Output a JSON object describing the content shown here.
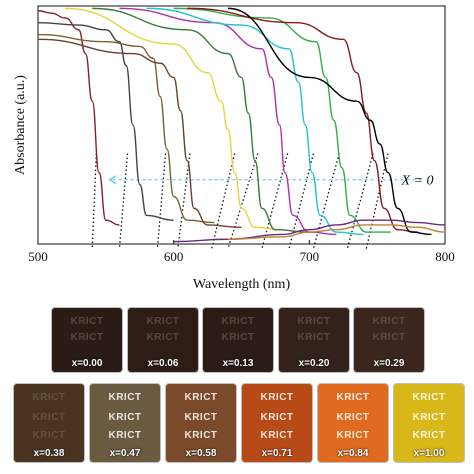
{
  "chart_data": {
    "type": "line",
    "title": "",
    "xlabel": "Wavelength (nm)",
    "ylabel": "Absorbance (a.u.)",
    "xlim": [
      500,
      800
    ],
    "ylim": [
      0,
      1
    ],
    "xticks": [
      "500",
      "600",
      "700",
      "800"
    ],
    "grid": false,
    "annotation": "X = 0",
    "series": [
      {
        "color": "#8a1f28",
        "x": [
          500,
          510,
          520,
          530,
          535,
          540,
          545,
          550,
          560
        ],
        "y": [
          0.98,
          0.97,
          0.95,
          0.9,
          0.8,
          0.6,
          0.3,
          0.1,
          0.08
        ]
      },
      {
        "color": "#444444",
        "x": [
          500,
          530,
          550,
          560,
          565,
          570,
          575,
          580,
          600
        ],
        "y": [
          0.93,
          0.92,
          0.9,
          0.85,
          0.75,
          0.5,
          0.25,
          0.12,
          0.1
        ]
      },
      {
        "color": "#7a6030",
        "x": [
          500,
          550,
          575,
          585,
          590,
          595,
          600,
          610,
          630
        ],
        "y": [
          0.88,
          0.85,
          0.83,
          0.78,
          0.62,
          0.4,
          0.2,
          0.1,
          0.09
        ]
      },
      {
        "color": "#6b3f30",
        "x": [
          500,
          570,
          590,
          600,
          605,
          610,
          615,
          625,
          650
        ],
        "y": [
          0.86,
          0.8,
          0.76,
          0.7,
          0.56,
          0.35,
          0.15,
          0.08,
          0.07
        ]
      },
      {
        "color": "#e0d640",
        "x": [
          520,
          600,
          625,
          635,
          640,
          645,
          650,
          660,
          680
        ],
        "y": [
          0.99,
          0.84,
          0.72,
          0.6,
          0.48,
          0.3,
          0.15,
          0.07,
          0.06
        ]
      },
      {
        "color": "#3a7a3a",
        "x": [
          540,
          610,
          640,
          650,
          655,
          660,
          665,
          675,
          700
        ],
        "y": [
          0.99,
          0.9,
          0.8,
          0.7,
          0.55,
          0.35,
          0.15,
          0.06,
          0.05
        ]
      },
      {
        "color": "#b030b0",
        "x": [
          560,
          630,
          665,
          672,
          678,
          682,
          688,
          700,
          720
        ],
        "y": [
          0.99,
          0.93,
          0.82,
          0.7,
          0.5,
          0.3,
          0.12,
          0.05,
          0.04
        ]
      },
      {
        "color": "#20c4d0",
        "x": [
          580,
          650,
          685,
          692,
          697,
          702,
          708,
          720,
          740
        ],
        "y": [
          0.99,
          0.92,
          0.82,
          0.68,
          0.5,
          0.3,
          0.12,
          0.05,
          0.04
        ]
      },
      {
        "color": "#30b040",
        "x": [
          600,
          670,
          705,
          712,
          718,
          724,
          730,
          742,
          760
        ],
        "y": [
          0.99,
          0.95,
          0.85,
          0.7,
          0.52,
          0.32,
          0.12,
          0.05,
          0.05
        ]
      },
      {
        "color": "#8a1a1a",
        "x": [
          610,
          690,
          725,
          735,
          742,
          748,
          755,
          765,
          780
        ],
        "y": [
          0.99,
          0.93,
          0.86,
          0.72,
          0.55,
          0.35,
          0.15,
          0.06,
          0.05
        ]
      },
      {
        "color": "#000000",
        "x": [
          640,
          700,
          735,
          745,
          752,
          758,
          765,
          775,
          790
        ],
        "y": [
          0.99,
          0.7,
          0.6,
          0.52,
          0.42,
          0.3,
          0.15,
          0.05,
          0.04
        ]
      },
      {
        "color": "#6a2a80",
        "x": [
          600,
          640,
          680,
          700,
          720,
          740,
          760,
          780,
          800
        ],
        "y": [
          0.01,
          0.02,
          0.04,
          0.06,
          0.08,
          0.1,
          0.1,
          0.09,
          0.08
        ]
      },
      {
        "color": "#c08030",
        "x": [
          640,
          680,
          700,
          720,
          740,
          760,
          780,
          800
        ],
        "y": [
          0.02,
          0.03,
          0.05,
          0.06,
          0.08,
          0.08,
          0.07,
          0.05
        ]
      }
    ],
    "dotted_lines": [
      {
        "x1": 543,
        "x2": 540
      },
      {
        "x1": 566,
        "x2": 560
      },
      {
        "x1": 594,
        "x2": 588
      },
      {
        "x1": 612,
        "x2": 603
      },
      {
        "x1": 645,
        "x2": 628
      },
      {
        "x1": 662,
        "x2": 640
      },
      {
        "x1": 684,
        "x2": 665
      },
      {
        "x1": 703,
        "x2": 685
      },
      {
        "x1": 722,
        "x2": 703
      },
      {
        "x1": 747,
        "x2": 728
      },
      {
        "x1": 758,
        "x2": 742
      }
    ]
  },
  "photo_panel": {
    "film_word": "KRICT",
    "films": [
      {
        "label": "x=0.00",
        "color": "#2a1b16"
      },
      {
        "label": "x=0.06",
        "color": "#2e1d17"
      },
      {
        "label": "x=0.13",
        "color": "#2c1c18"
      },
      {
        "label": "x=0.20",
        "color": "#33221b"
      },
      {
        "label": "x=0.29",
        "color": "#3a261d"
      },
      {
        "label": "x=0.38",
        "color": "#4a3420"
      },
      {
        "label": "x=0.47",
        "color": "#6a5a40"
      },
      {
        "label": "x=0.58",
        "color": "#7a4a2a"
      },
      {
        "label": "x=0.71",
        "color": "#b84a18"
      },
      {
        "label": "x=0.84",
        "color": "#e06a20"
      },
      {
        "label": "x=1.00",
        "color": "#d8b818"
      }
    ]
  }
}
